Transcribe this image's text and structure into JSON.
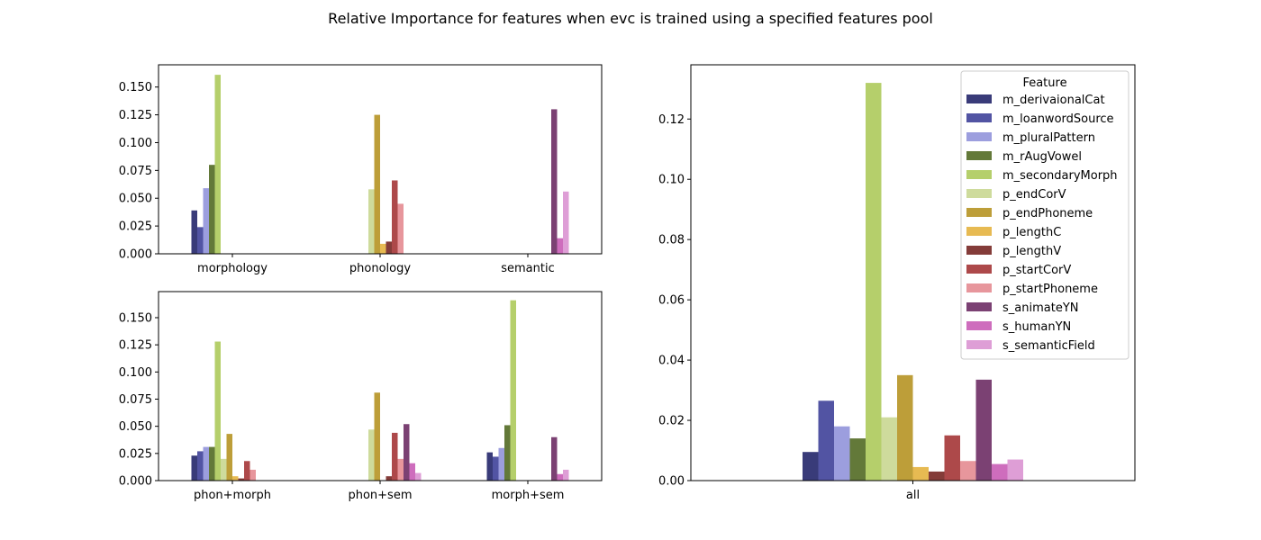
{
  "figure": {
    "title": "Relative Importance for features when evc is trained using a specified features pool"
  },
  "legend": {
    "title": "Feature",
    "placement": "upper-right of right panel"
  },
  "features": [
    {
      "name": "m_derivaionalCat",
      "color": "#393b79"
    },
    {
      "name": "m_loanwordSource",
      "color": "#5254a3"
    },
    {
      "name": "m_pluralPattern",
      "color": "#9c9ede"
    },
    {
      "name": "m_rAugVowel",
      "color": "#637939"
    },
    {
      "name": "m_secondaryMorph",
      "color": "#b5cf6b"
    },
    {
      "name": "p_endCorV",
      "color": "#cedb9c"
    },
    {
      "name": "p_endPhoneme",
      "color": "#bd9e39"
    },
    {
      "name": "p_lengthC",
      "color": "#e7ba52"
    },
    {
      "name": "p_lengthV",
      "color": "#843c39"
    },
    {
      "name": "p_startCorV",
      "color": "#ad494a"
    },
    {
      "name": "p_startPhoneme",
      "color": "#e7969c"
    },
    {
      "name": "s_animateYN",
      "color": "#7b4173"
    },
    {
      "name": "s_humanYN",
      "color": "#ce6dbd"
    },
    {
      "name": "s_semanticField",
      "color": "#de9ed6"
    }
  ],
  "chart_data": [
    {
      "type": "bar",
      "panel": "top-left",
      "categories": [
        "morphology",
        "phonology",
        "semantic"
      ],
      "ylim": [
        0,
        0.17
      ],
      "yticks": [
        0.0,
        0.025,
        0.05,
        0.075,
        0.1,
        0.125,
        0.15
      ],
      "ytick_labels": [
        "0.000",
        "0.025",
        "0.050",
        "0.075",
        "0.100",
        "0.125",
        "0.150"
      ],
      "series": [
        {
          "name": "m_derivaionalCat",
          "values": [
            0.039,
            0,
            0
          ]
        },
        {
          "name": "m_loanwordSource",
          "values": [
            0.024,
            0,
            0
          ]
        },
        {
          "name": "m_pluralPattern",
          "values": [
            0.059,
            0,
            0
          ]
        },
        {
          "name": "m_rAugVowel",
          "values": [
            0.08,
            0,
            0
          ]
        },
        {
          "name": "m_secondaryMorph",
          "values": [
            0.161,
            0,
            0
          ]
        },
        {
          "name": "p_endCorV",
          "values": [
            0,
            0.058,
            0
          ]
        },
        {
          "name": "p_endPhoneme",
          "values": [
            0,
            0.125,
            0
          ]
        },
        {
          "name": "p_lengthC",
          "values": [
            0,
            0.009,
            0
          ]
        },
        {
          "name": "p_lengthV",
          "values": [
            0,
            0.011,
            0
          ]
        },
        {
          "name": "p_startCorV",
          "values": [
            0,
            0.066,
            0
          ]
        },
        {
          "name": "p_startPhoneme",
          "values": [
            0,
            0.045,
            0
          ]
        },
        {
          "name": "s_animateYN",
          "values": [
            0,
            0,
            0.13
          ]
        },
        {
          "name": "s_humanYN",
          "values": [
            0,
            0,
            0.014
          ]
        },
        {
          "name": "s_semanticField",
          "values": [
            0,
            0,
            0.056
          ]
        }
      ]
    },
    {
      "type": "bar",
      "panel": "bottom-left",
      "categories": [
        "phon+morph",
        "phon+sem",
        "morph+sem"
      ],
      "ylim": [
        0,
        0.174
      ],
      "yticks": [
        0.0,
        0.025,
        0.05,
        0.075,
        0.1,
        0.125,
        0.15
      ],
      "ytick_labels": [
        "0.000",
        "0.025",
        "0.050",
        "0.075",
        "0.100",
        "0.125",
        "0.150"
      ],
      "series": [
        {
          "name": "m_derivaionalCat",
          "values": [
            0.023,
            0,
            0.026
          ]
        },
        {
          "name": "m_loanwordSource",
          "values": [
            0.027,
            0,
            0.022
          ]
        },
        {
          "name": "m_pluralPattern",
          "values": [
            0.031,
            0,
            0.03
          ]
        },
        {
          "name": "m_rAugVowel",
          "values": [
            0.031,
            0,
            0.051
          ]
        },
        {
          "name": "m_secondaryMorph",
          "values": [
            0.128,
            0,
            0.166
          ]
        },
        {
          "name": "p_endCorV",
          "values": [
            0.02,
            0.047,
            0
          ]
        },
        {
          "name": "p_endPhoneme",
          "values": [
            0.043,
            0.081,
            0
          ]
        },
        {
          "name": "p_lengthC",
          "values": [
            0.004,
            0,
            0
          ]
        },
        {
          "name": "p_lengthV",
          "values": [
            0.002,
            0.004,
            0
          ]
        },
        {
          "name": "p_startCorV",
          "values": [
            0.018,
            0.044,
            0
          ]
        },
        {
          "name": "p_startPhoneme",
          "values": [
            0.01,
            0.02,
            0
          ]
        },
        {
          "name": "s_animateYN",
          "values": [
            0,
            0.052,
            0.04
          ]
        },
        {
          "name": "s_humanYN",
          "values": [
            0,
            0.016,
            0.006
          ]
        },
        {
          "name": "s_semanticField",
          "values": [
            0,
            0.007,
            0.01
          ]
        }
      ]
    },
    {
      "type": "bar",
      "panel": "right",
      "categories": [
        "all"
      ],
      "ylim": [
        0,
        0.138
      ],
      "yticks": [
        0.0,
        0.02,
        0.04,
        0.06,
        0.08,
        0.1,
        0.12
      ],
      "ytick_labels": [
        "0.00",
        "0.02",
        "0.04",
        "0.06",
        "0.08",
        "0.10",
        "0.12"
      ],
      "series": [
        {
          "name": "m_derivaionalCat",
          "values": [
            0.0095
          ]
        },
        {
          "name": "m_loanwordSource",
          "values": [
            0.0265
          ]
        },
        {
          "name": "m_pluralPattern",
          "values": [
            0.018
          ]
        },
        {
          "name": "m_rAugVowel",
          "values": [
            0.014
          ]
        },
        {
          "name": "m_secondaryMorph",
          "values": [
            0.132
          ]
        },
        {
          "name": "p_endCorV",
          "values": [
            0.021
          ]
        },
        {
          "name": "p_endPhoneme",
          "values": [
            0.035
          ]
        },
        {
          "name": "p_lengthC",
          "values": [
            0.0045
          ]
        },
        {
          "name": "p_lengthV",
          "values": [
            0.003
          ]
        },
        {
          "name": "p_startCorV",
          "values": [
            0.015
          ]
        },
        {
          "name": "p_startPhoneme",
          "values": [
            0.0065
          ]
        },
        {
          "name": "s_animateYN",
          "values": [
            0.0335
          ]
        },
        {
          "name": "s_humanYN",
          "values": [
            0.0055
          ]
        },
        {
          "name": "s_semanticField",
          "values": [
            0.007
          ]
        }
      ]
    }
  ]
}
